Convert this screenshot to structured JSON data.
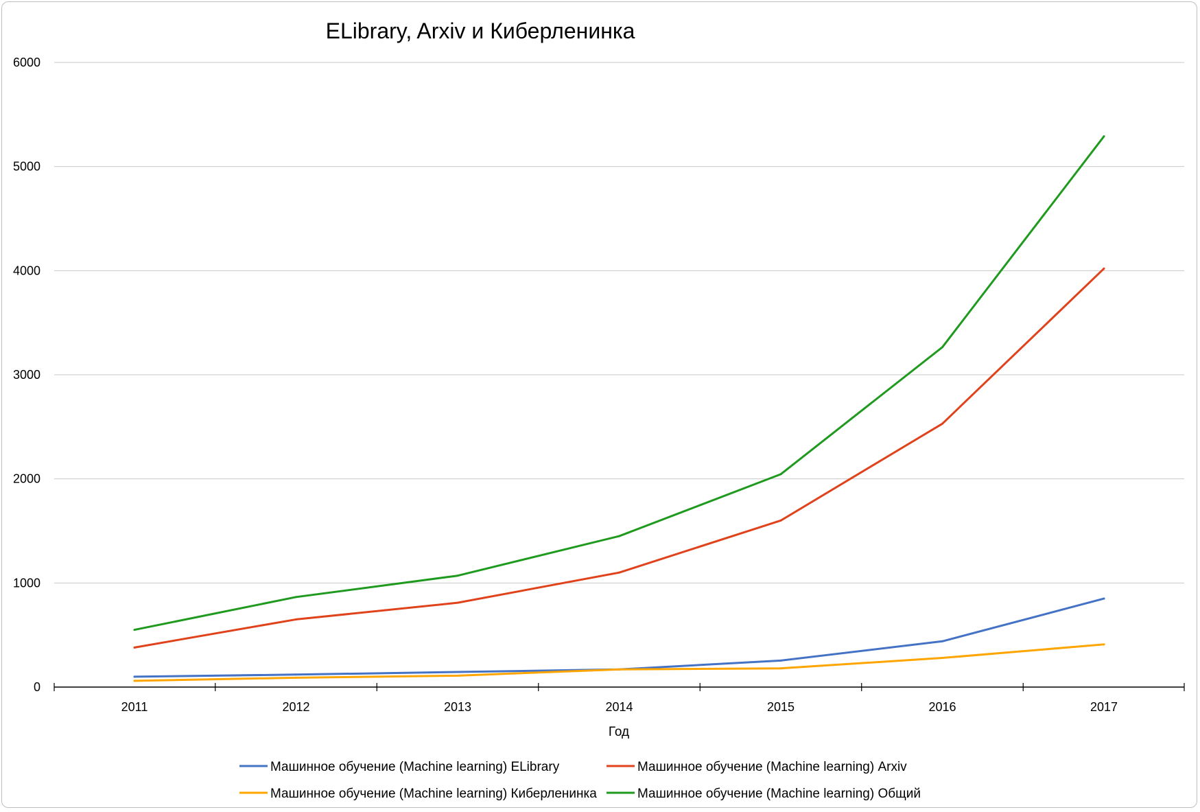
{
  "chart_data": {
    "type": "line",
    "title": "ELibrary, Arxiv и Киберленинка",
    "xlabel": "Год",
    "ylabel": "",
    "x": [
      "2011",
      "2012",
      "2013",
      "2014",
      "2015",
      "2016",
      "2017"
    ],
    "ylim": [
      0,
      6000
    ],
    "y_ticks": [
      "0",
      "1000",
      "2000",
      "3000",
      "4000",
      "5000",
      "6000"
    ],
    "grid": true,
    "legend_position": "bottom",
    "series": [
      {
        "name": "Машинное обучение (Machine learning) ELibrary",
        "color": "#4472C4",
        "values": [
          100,
          120,
          145,
          170,
          255,
          440,
          850
        ]
      },
      {
        "name": "Машинное обучение (Machine learning) Arxiv",
        "color": "#E0421B",
        "values": [
          380,
          650,
          810,
          1100,
          1600,
          2530,
          4020
        ]
      },
      {
        "name": "Машинное обучение (Machine learning) Киберленинка",
        "color": "#FFA500",
        "values": [
          60,
          90,
          110,
          170,
          180,
          280,
          410
        ]
      },
      {
        "name": "Машинное обучение (Machine learning) Общий",
        "color": "#1F9A1F",
        "values": [
          550,
          865,
          1070,
          1450,
          2045,
          3265,
          5290
        ]
      }
    ]
  }
}
